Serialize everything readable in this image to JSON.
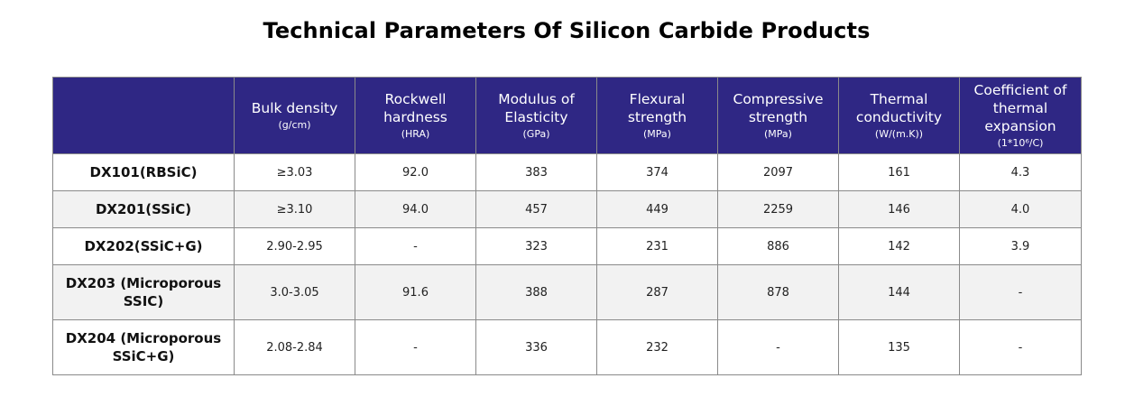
{
  "title": "Technical Parameters Of Silicon Carbide Products",
  "colors": {
    "header_bg": "#2f2784",
    "header_text": "#ffffff",
    "row_alt_bg": "#f2f2f2",
    "border": "#8a8a8a"
  },
  "table": {
    "corner": "",
    "headers": [
      {
        "label": "Bulk density",
        "unit": "(g/cm)"
      },
      {
        "label": "Rockwell hardness",
        "unit": "(HRA)"
      },
      {
        "label": "Modulus of Elasticity",
        "unit": "(GPa)"
      },
      {
        "label": "Flexural strength",
        "unit": "(MPa)"
      },
      {
        "label": "Compressive strength",
        "unit": "(MPa)"
      },
      {
        "label": "Thermal conductivity",
        "unit": "(W/(m.K))"
      },
      {
        "label": "Coefficient of thermal expansion",
        "unit": "(1*10⁶/C)"
      }
    ],
    "rows": [
      {
        "name": "DX101(RBSiC)",
        "values": [
          "≥3.03",
          "92.0",
          "383",
          "374",
          "2097",
          "161",
          "4.3"
        ]
      },
      {
        "name": "DX201(SSiC)",
        "values": [
          "≥3.10",
          "94.0",
          "457",
          "449",
          "2259",
          "146",
          "4.0"
        ]
      },
      {
        "name": "DX202(SSiC+G)",
        "values": [
          "2.90-2.95",
          "-",
          "323",
          "231",
          "886",
          "142",
          "3.9"
        ]
      },
      {
        "name": "DX203 (Microporous SSIC)",
        "values": [
          "3.0-3.05",
          "91.6",
          "388",
          "287",
          "878",
          "144",
          "-"
        ]
      },
      {
        "name": "DX204 (Microporous SSiC+G)",
        "values": [
          "2.08-2.84",
          "-",
          "336",
          "232",
          "-",
          "135",
          "-"
        ]
      }
    ]
  }
}
